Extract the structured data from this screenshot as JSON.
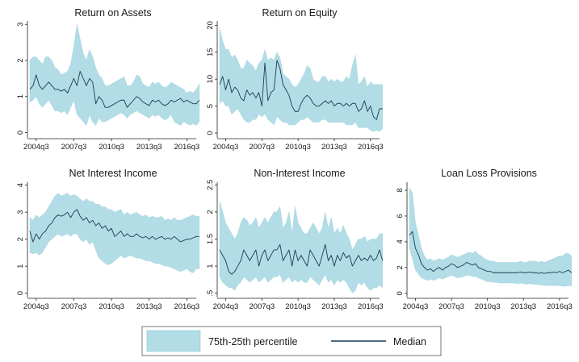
{
  "legend": {
    "band_label": "75th-25th percentile",
    "median_label": "Median",
    "band_color": "#b3dde6",
    "median_color": "#1a3a52"
  },
  "chart_data": [
    {
      "type": "area",
      "title": "Return on Assets",
      "x_ticks": [
        "2004q3",
        "2007q3",
        "2010q3",
        "2013q3",
        "2016q3"
      ],
      "x_range": [
        "2004q1",
        "2017q2"
      ],
      "y_ticks": [
        "0",
        "1",
        "2",
        "3"
      ],
      "ylim": [
        -0.1,
        3.05
      ],
      "y_tick_values": [
        0,
        1,
        2,
        3
      ],
      "series": [
        {
          "values": [
            1.2,
            1.3,
            1.6,
            1.3,
            1.2,
            1.3,
            1.4,
            1.3,
            1.2,
            1.2,
            1.15,
            1.2,
            1.1,
            1.3,
            1.5,
            1.3,
            1.7,
            1.5,
            1.3,
            1.5,
            1.4,
            0.8,
            1.0,
            0.9,
            0.7,
            0.7,
            0.75,
            0.8,
            0.85,
            0.9,
            0.9,
            0.7,
            0.8,
            0.9,
            1.0,
            0.95,
            0.85,
            0.8,
            0.75,
            0.9,
            0.85,
            0.9,
            0.8,
            0.75,
            0.8,
            0.9,
            0.85,
            0.9,
            0.95,
            0.85,
            0.9,
            0.85,
            0.8,
            0.8,
            0.9
          ]
        },
        {
          "values": [
            0.85,
            0.9,
            1.0,
            0.8,
            0.7,
            0.8,
            0.9,
            0.75,
            0.6,
            0.6,
            0.55,
            0.6,
            0.5,
            0.7,
            0.9,
            0.5,
            0.4,
            0.3,
            0.2,
            0.5,
            0.3,
            0.2,
            0.4,
            0.3,
            0.3,
            0.35,
            0.4,
            0.45,
            0.5,
            0.55,
            0.5,
            0.4,
            0.5,
            0.55,
            0.6,
            0.55,
            0.5,
            0.45,
            0.4,
            0.5,
            0.45,
            0.5,
            0.4,
            0.35,
            0.4,
            0.5,
            0.3,
            0.25,
            0.2,
            0.3,
            0.25,
            0.2,
            0.25,
            0.2,
            0.3
          ]
        },
        {
          "values": [
            2.0,
            2.1,
            2.1,
            2.0,
            1.9,
            2.1,
            2.1,
            2.0,
            1.8,
            1.75,
            1.6,
            1.65,
            1.7,
            1.9,
            2.4,
            3.0,
            2.6,
            2.2,
            2.0,
            2.3,
            2.1,
            1.8,
            1.6,
            1.5,
            1.3,
            1.3,
            1.35,
            1.4,
            1.45,
            1.5,
            1.55,
            1.3,
            1.3,
            1.4,
            1.6,
            1.55,
            1.35,
            1.3,
            1.25,
            1.4,
            1.35,
            1.4,
            1.3,
            1.25,
            1.3,
            1.4,
            1.35,
            1.3,
            1.25,
            1.2,
            1.1,
            1.15,
            1.1,
            1.2,
            1.35
          ]
        }
      ]
    },
    {
      "type": "area",
      "title": "Return on Equity",
      "x_ticks": [
        "2004q3",
        "2007q3",
        "2010q3",
        "2013q3",
        "2016q3"
      ],
      "x_range": [
        "2004q1",
        "2017q2"
      ],
      "y_ticks": [
        "0",
        "5",
        "10",
        "15",
        "20"
      ],
      "ylim": [
        -0.6,
        20.5
      ],
      "y_tick_values": [
        0,
        5,
        10,
        15,
        20
      ],
      "series": [
        {
          "values": [
            9.0,
            10.5,
            8.0,
            10.0,
            7.5,
            8.5,
            8.0,
            6.5,
            6.0,
            8.0,
            7.0,
            7.5,
            6.5,
            7.5,
            5.0,
            13.0,
            6.0,
            7.5,
            8.0,
            13.5,
            12.0,
            9.0,
            8.0,
            7.0,
            5.0,
            4.0,
            4.0,
            5.5,
            6.5,
            7.0,
            6.5,
            5.5,
            5.0,
            5.0,
            5.5,
            6.0,
            5.5,
            6.0,
            5.0,
            5.5,
            5.5,
            5.0,
            5.5,
            5.0,
            5.5,
            5.5,
            4.0,
            4.5,
            6.0,
            4.0,
            5.0,
            3.0,
            2.5,
            4.5,
            4.5
          ]
        },
        {
          "values": [
            5.5,
            6.0,
            5.0,
            5.0,
            3.5,
            4.0,
            4.5,
            3.5,
            2.5,
            2.0,
            2.0,
            2.5,
            2.5,
            3.5,
            3.0,
            3.5,
            2.5,
            2.0,
            1.5,
            3.0,
            2.5,
            2.0,
            2.0,
            1.5,
            1.5,
            1.5,
            2.0,
            2.5,
            2.5,
            3.0,
            2.5,
            2.0,
            2.0,
            2.0,
            2.5,
            2.5,
            2.0,
            2.0,
            2.0,
            2.0,
            2.0,
            2.0,
            1.5,
            1.5,
            1.5,
            2.0,
            1.0,
            1.0,
            1.0,
            1.0,
            0.5,
            0.3,
            0.5,
            0.3,
            0.8
          ]
        },
        {
          "values": [
            19.5,
            17.0,
            15.5,
            15.5,
            14.0,
            14.5,
            13.5,
            12.0,
            12.0,
            13.5,
            13.0,
            12.5,
            11.5,
            13.0,
            13.5,
            15.5,
            13.5,
            14.0,
            13.5,
            15.0,
            14.0,
            11.0,
            10.5,
            10.0,
            9.0,
            8.5,
            9.0,
            10.0,
            11.0,
            12.5,
            12.0,
            10.0,
            9.5,
            9.5,
            10.5,
            10.5,
            9.5,
            10.0,
            9.5,
            10.0,
            9.5,
            9.5,
            10.5,
            10.0,
            12.5,
            14.5,
            9.0,
            9.5,
            10.5,
            8.5,
            9.5,
            9.0,
            9.0,
            9.0,
            9.0
          ]
        }
      ]
    },
    {
      "type": "area",
      "title": "Net Interest Income",
      "x_ticks": [
        "2004q3",
        "2007q3",
        "2010q3",
        "2013q3",
        "2016q3"
      ],
      "x_range": [
        "2004q1",
        "2017q2"
      ],
      "y_ticks": [
        "0",
        "1",
        "2",
        "3",
        "4"
      ],
      "ylim": [
        -0.1,
        4.05
      ],
      "y_tick_values": [
        0,
        1,
        2,
        3,
        4
      ],
      "series": [
        {
          "values": [
            2.3,
            1.9,
            2.2,
            2.0,
            2.2,
            2.3,
            2.5,
            2.6,
            2.8,
            2.9,
            2.85,
            2.9,
            3.0,
            2.8,
            3.0,
            3.1,
            2.85,
            2.7,
            2.8,
            2.6,
            2.7,
            2.5,
            2.6,
            2.4,
            2.5,
            2.3,
            2.4,
            2.1,
            2.2,
            2.3,
            2.1,
            2.2,
            2.1,
            2.1,
            2.2,
            2.1,
            2.05,
            2.1,
            2.0,
            2.1,
            2.0,
            2.05,
            2.1,
            2.0,
            2.05,
            2.0,
            2.1,
            2.0,
            1.9,
            1.95,
            2.0,
            2.0,
            2.05,
            2.1,
            2.1
          ]
        },
        {
          "values": [
            1.5,
            1.45,
            1.5,
            1.4,
            1.5,
            1.7,
            1.9,
            2.0,
            2.1,
            2.2,
            2.1,
            2.15,
            2.2,
            2.1,
            2.2,
            2.2,
            2.0,
            1.9,
            2.0,
            1.8,
            1.9,
            1.6,
            1.3,
            1.2,
            1.1,
            1.05,
            1.1,
            1.2,
            1.3,
            1.4,
            1.3,
            1.35,
            1.4,
            1.35,
            1.3,
            1.3,
            1.25,
            1.2,
            1.2,
            1.15,
            1.1,
            1.1,
            1.05,
            1.0,
            1.0,
            0.95,
            0.9,
            0.85,
            0.8,
            0.85,
            0.9,
            0.8,
            0.75,
            0.9,
            0.9
          ]
        },
        {
          "values": [
            2.8,
            2.7,
            2.9,
            2.8,
            2.9,
            3.0,
            3.2,
            3.4,
            3.6,
            3.7,
            3.6,
            3.65,
            3.7,
            3.6,
            3.65,
            3.6,
            3.5,
            3.4,
            3.5,
            3.4,
            3.4,
            3.3,
            3.3,
            3.2,
            3.2,
            3.1,
            3.1,
            3.0,
            3.05,
            3.1,
            2.9,
            3.0,
            2.9,
            2.95,
            3.0,
            2.9,
            2.85,
            2.9,
            2.8,
            2.85,
            2.8,
            2.8,
            2.85,
            2.7,
            2.75,
            2.7,
            2.8,
            2.7,
            2.7,
            2.75,
            2.8,
            2.85,
            2.9,
            2.85,
            2.85
          ]
        }
      ]
    },
    {
      "type": "area",
      "title": "Non-Interest Income",
      "x_ticks": [
        "2004q3",
        "2007q3",
        "2010q3",
        "2013q3",
        "2016q3"
      ],
      "x_range": [
        "2004q1",
        "2017q2"
      ],
      "y_ticks": [
        ".5",
        "1",
        "1.5",
        "2",
        "2.5"
      ],
      "ylim": [
        0.45,
        2.52
      ],
      "y_tick_values": [
        0.5,
        1,
        1.5,
        2,
        2.5
      ],
      "series": [
        {
          "values": [
            1.3,
            1.2,
            1.1,
            0.9,
            0.85,
            0.9,
            1.0,
            1.1,
            1.3,
            1.2,
            1.1,
            1.2,
            1.3,
            1.0,
            1.2,
            1.3,
            1.1,
            1.2,
            1.3,
            1.3,
            1.4,
            1.1,
            1.2,
            1.3,
            1.0,
            1.3,
            1.1,
            1.2,
            1.1,
            1.0,
            1.3,
            1.2,
            1.1,
            1.0,
            1.2,
            1.4,
            1.1,
            1.2,
            1.0,
            1.2,
            1.1,
            1.25,
            1.15,
            1.2,
            1.0,
            1.1,
            1.2,
            1.1,
            1.15,
            1.1,
            1.2,
            1.1,
            1.15,
            1.3,
            1.1
          ]
        },
        {
          "values": [
            0.8,
            0.7,
            0.65,
            0.6,
            0.6,
            0.55,
            0.65,
            0.7,
            0.8,
            0.75,
            0.7,
            0.75,
            0.8,
            0.7,
            0.75,
            0.8,
            0.7,
            0.75,
            0.8,
            0.8,
            0.85,
            0.7,
            0.75,
            0.8,
            0.7,
            0.75,
            0.7,
            0.75,
            0.7,
            0.7,
            0.8,
            0.75,
            0.7,
            0.65,
            0.75,
            0.85,
            0.7,
            0.75,
            0.65,
            0.75,
            0.7,
            0.75,
            0.7,
            0.6,
            0.5,
            0.55,
            0.7,
            0.65,
            0.7,
            0.6,
            0.55,
            0.6,
            0.6,
            0.65,
            0.6
          ]
        },
        {
          "values": [
            2.2,
            2.0,
            1.8,
            1.7,
            1.6,
            1.5,
            1.6,
            1.8,
            1.9,
            1.85,
            1.75,
            1.8,
            1.9,
            1.7,
            1.8,
            1.9,
            1.8,
            1.9,
            2.0,
            2.0,
            2.1,
            1.7,
            1.8,
            2.0,
            1.6,
            2.1,
            1.8,
            1.7,
            1.6,
            1.6,
            1.7,
            1.8,
            1.7,
            1.6,
            1.7,
            2.0,
            1.7,
            1.9,
            1.6,
            1.7,
            1.6,
            1.75,
            1.6,
            1.5,
            1.3,
            1.4,
            1.5,
            1.5,
            1.55,
            1.45,
            1.5,
            1.5,
            1.5,
            1.6,
            1.6
          ]
        }
      ]
    },
    {
      "type": "area",
      "title": "Loan Loss Provisions",
      "x_ticks": [
        "2004q3",
        "2007q3",
        "2010q3",
        "2013q3",
        "2016q3"
      ],
      "x_range": [
        "2004q1",
        "2017q2"
      ],
      "y_ticks": [
        "0",
        "2",
        "4",
        "6",
        "8"
      ],
      "ylim": [
        -0.2,
        8.5
      ],
      "y_tick_values": [
        0,
        2,
        4,
        6,
        8
      ],
      "series": [
        {
          "values": [
            4.5,
            4.8,
            3.5,
            3.0,
            2.3,
            2.0,
            1.8,
            1.9,
            1.7,
            1.9,
            2.0,
            1.8,
            2.0,
            2.1,
            2.3,
            2.2,
            2.0,
            2.1,
            2.2,
            2.4,
            2.3,
            2.2,
            2.3,
            2.0,
            1.9,
            1.8,
            1.7,
            1.7,
            1.6,
            1.6,
            1.6,
            1.6,
            1.6,
            1.6,
            1.6,
            1.6,
            1.6,
            1.65,
            1.6,
            1.6,
            1.65,
            1.6,
            1.6,
            1.55,
            1.6,
            1.55,
            1.6,
            1.6,
            1.65,
            1.6,
            1.7,
            1.6,
            1.7,
            1.8,
            1.6
          ]
        },
        {
          "values": [
            3.5,
            2.7,
            1.8,
            1.5,
            1.2,
            1.1,
            1.0,
            1.1,
            1.0,
            1.1,
            1.2,
            1.1,
            1.2,
            1.3,
            1.4,
            1.3,
            1.2,
            1.25,
            1.3,
            1.4,
            1.4,
            1.3,
            1.3,
            1.2,
            1.1,
            1.0,
            0.9,
            0.9,
            0.85,
            0.85,
            0.8,
            0.8,
            0.8,
            0.8,
            0.8,
            0.8,
            0.75,
            0.8,
            0.75,
            0.7,
            0.75,
            0.7,
            0.7,
            0.65,
            0.65,
            0.6,
            0.6,
            0.6,
            0.6,
            0.6,
            0.6,
            0.55,
            0.55,
            0.6,
            0.55
          ]
        },
        {
          "values": [
            8.2,
            7.8,
            5.5,
            4.5,
            3.5,
            2.9,
            2.6,
            2.7,
            2.5,
            2.6,
            2.7,
            2.6,
            2.7,
            2.8,
            3.0,
            2.9,
            2.8,
            2.9,
            3.0,
            3.1,
            3.2,
            3.1,
            3.3,
            3.0,
            2.9,
            2.7,
            2.6,
            2.5,
            2.5,
            2.4,
            2.4,
            2.4,
            2.4,
            2.4,
            2.4,
            2.4,
            2.4,
            2.5,
            2.4,
            2.4,
            2.5,
            2.5,
            2.5,
            2.4,
            2.5,
            2.4,
            2.5,
            2.6,
            2.7,
            2.8,
            2.9,
            2.9,
            3.1,
            3.1,
            2.9
          ]
        }
      ]
    }
  ]
}
